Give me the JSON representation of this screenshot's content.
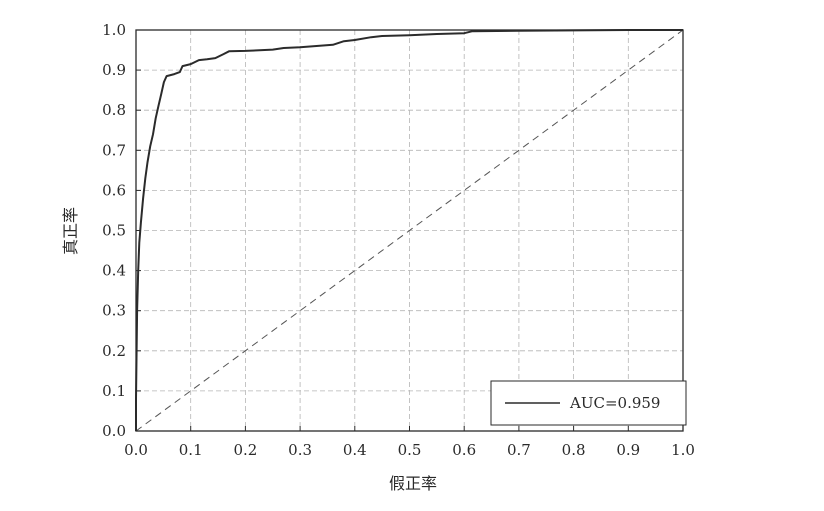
{
  "chart_data": {
    "type": "line",
    "title": "",
    "xlabel": "假正率",
    "ylabel": "真正率",
    "xlim": [
      0.0,
      1.0
    ],
    "ylim": [
      0.0,
      1.0
    ],
    "grid": true,
    "legend_position": "bottom-right",
    "x_ticks": [
      "0.0",
      "0.1",
      "0.2",
      "0.3",
      "0.4",
      "0.5",
      "0.6",
      "0.7",
      "0.8",
      "0.9",
      "1.0"
    ],
    "y_ticks": [
      "0.0",
      "0.1",
      "0.2",
      "0.3",
      "0.4",
      "0.5",
      "0.6",
      "0.7",
      "0.8",
      "0.9",
      "1.0"
    ],
    "series": [
      {
        "name": "AUC=0.959",
        "style": "solid",
        "color": "#2b2b2b",
        "points": [
          [
            0.0,
            0.0
          ],
          [
            0.0,
            0.08
          ],
          [
            0.002,
            0.3
          ],
          [
            0.004,
            0.4
          ],
          [
            0.006,
            0.47
          ],
          [
            0.009,
            0.52
          ],
          [
            0.013,
            0.58
          ],
          [
            0.017,
            0.63
          ],
          [
            0.021,
            0.67
          ],
          [
            0.026,
            0.71
          ],
          [
            0.031,
            0.74
          ],
          [
            0.036,
            0.78
          ],
          [
            0.041,
            0.81
          ],
          [
            0.046,
            0.84
          ],
          [
            0.051,
            0.87
          ],
          [
            0.056,
            0.885
          ],
          [
            0.07,
            0.89
          ],
          [
            0.08,
            0.895
          ],
          [
            0.085,
            0.91
          ],
          [
            0.1,
            0.915
          ],
          [
            0.115,
            0.925
          ],
          [
            0.13,
            0.927
          ],
          [
            0.145,
            0.93
          ],
          [
            0.16,
            0.94
          ],
          [
            0.17,
            0.947
          ],
          [
            0.2,
            0.948
          ],
          [
            0.25,
            0.951
          ],
          [
            0.27,
            0.955
          ],
          [
            0.3,
            0.957
          ],
          [
            0.33,
            0.96
          ],
          [
            0.36,
            0.963
          ],
          [
            0.38,
            0.972
          ],
          [
            0.4,
            0.975
          ],
          [
            0.43,
            0.982
          ],
          [
            0.45,
            0.985
          ],
          [
            0.5,
            0.987
          ],
          [
            0.55,
            0.99
          ],
          [
            0.6,
            0.992
          ],
          [
            0.615,
            0.997
          ],
          [
            0.7,
            0.998
          ],
          [
            0.8,
            0.999
          ],
          [
            0.9,
            1.0
          ],
          [
            1.0,
            1.0
          ]
        ]
      },
      {
        "name": "",
        "style": "dashed",
        "color": "#555555",
        "points": [
          [
            0.0,
            0.0
          ],
          [
            1.0,
            1.0
          ]
        ]
      }
    ]
  }
}
